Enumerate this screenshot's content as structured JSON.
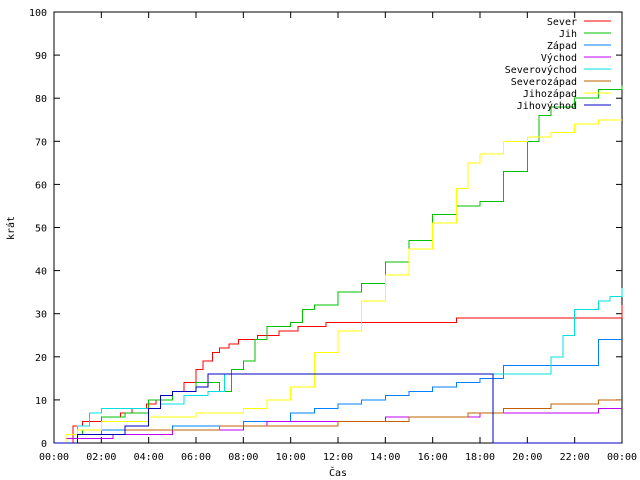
{
  "chart_data": {
    "type": "line",
    "title": "",
    "xlabel": "Čas",
    "ylabel": "krát",
    "xlim": [
      0,
      24
    ],
    "ylim": [
      0,
      100
    ],
    "x_ticks": [
      {
        "value": 0,
        "label": "00:00"
      },
      {
        "value": 2,
        "label": "02:00"
      },
      {
        "value": 4,
        "label": "04:00"
      },
      {
        "value": 6,
        "label": "06:00"
      },
      {
        "value": 8,
        "label": "08:00"
      },
      {
        "value": 10,
        "label": "10:00"
      },
      {
        "value": 12,
        "label": "12:00"
      },
      {
        "value": 14,
        "label": "14:00"
      },
      {
        "value": 16,
        "label": "16:00"
      },
      {
        "value": 18,
        "label": "18:00"
      },
      {
        "value": 20,
        "label": "20:00"
      },
      {
        "value": 22,
        "label": "22:00"
      },
      {
        "value": 24,
        "label": "00:00"
      }
    ],
    "y_ticks": [
      0,
      10,
      20,
      30,
      40,
      50,
      60,
      70,
      80,
      90,
      100
    ],
    "grid": false,
    "legend_position": "top-right",
    "series": [
      {
        "name": "Sever",
        "color": "#ff0000",
        "step": true,
        "x": [
          0,
          0.8,
          1.2,
          2.0,
          2.8,
          3.3,
          3.9,
          4.3,
          5.0,
          5.5,
          6.0,
          6.3,
          6.7,
          7.0,
          7.4,
          7.8,
          8.6,
          9.5,
          10.3,
          11.0,
          11.5,
          12.0,
          17.0,
          24.0
        ],
        "y": [
          0,
          4,
          5,
          6,
          7,
          8,
          9,
          10,
          12,
          14,
          17,
          19,
          21,
          22,
          23,
          24,
          25,
          26,
          27,
          27,
          28,
          28,
          29,
          32
        ]
      },
      {
        "name": "Jih",
        "color": "#00c000",
        "step": true,
        "x": [
          0,
          0.5,
          1.2,
          2.0,
          3.0,
          4.0,
          5.0,
          6.0,
          7.0,
          7.5,
          8.0,
          8.5,
          9.0,
          10.0,
          10.5,
          11.0,
          12.0,
          13.0,
          14.0,
          15.0,
          16.0,
          17.0,
          18.0,
          19.0,
          20.0,
          20.5,
          21.0,
          22.0,
          23.0,
          24.0
        ],
        "y": [
          0,
          2,
          3,
          6,
          7,
          10,
          12,
          14,
          12,
          17,
          19,
          24,
          27,
          28,
          31,
          32,
          35,
          37,
          42,
          47,
          53,
          55,
          56,
          63,
          70,
          76,
          78,
          80,
          82,
          83
        ]
      },
      {
        "name": "Západ",
        "color": "#0080ff",
        "step": true,
        "x": [
          0,
          0.5,
          1.0,
          2.0,
          3.0,
          5.0,
          7.0,
          8.0,
          9.0,
          10.0,
          11.0,
          12.0,
          13.0,
          14.0,
          15.0,
          16.0,
          17.0,
          18.0,
          19.0,
          21.0,
          23.0,
          24.0
        ],
        "y": [
          0,
          1,
          2,
          3,
          3,
          4,
          4,
          5,
          5,
          7,
          8,
          9,
          10,
          11,
          12,
          13,
          14,
          15,
          18,
          18,
          24,
          24
        ]
      },
      {
        "name": "Východ",
        "color": "#c000ff",
        "step": true,
        "x": [
          0,
          0.5,
          1.5,
          2.5,
          5.0,
          8.0,
          9.0,
          13.0,
          14.0,
          18.0,
          20.0,
          23.0,
          24.0
        ],
        "y": [
          0,
          1,
          1,
          2,
          3,
          4,
          5,
          5,
          6,
          7,
          7,
          8,
          8
        ]
      },
      {
        "name": "Severovýchod",
        "color": "#00e0e0",
        "step": true,
        "x": [
          0,
          1.0,
          1.5,
          2.0,
          3.5,
          4.5,
          5.5,
          6.5,
          7.2,
          7.5,
          8.0,
          20.5,
          21.0,
          21.5,
          22.0,
          23.0,
          23.5,
          24.0
        ],
        "y": [
          0,
          4,
          7,
          8,
          8,
          9,
          11,
          12,
          16,
          16,
          16,
          16,
          20,
          25,
          31,
          33,
          34,
          36
        ]
      },
      {
        "name": "Severozápad",
        "color": "#c06000",
        "step": true,
        "x": [
          0,
          1.0,
          2.0,
          3.0,
          5.0,
          7.0,
          9.0,
          12.0,
          15.0,
          17.0,
          17.5,
          19.0,
          21.0,
          23.0,
          24.0
        ],
        "y": [
          0,
          2,
          2,
          3,
          3,
          4,
          4,
          5,
          6,
          6,
          7,
          8,
          9,
          10,
          10
        ]
      },
      {
        "name": "Jihozápad",
        "color": "#ffff00",
        "step": true,
        "x": [
          0,
          0.5,
          1.0,
          2.0,
          4.0,
          6.0,
          7.5,
          8.0,
          9.0,
          10.0,
          11.0,
          12.0,
          13.0,
          14.0,
          15.0,
          16.0,
          17.0,
          17.5,
          18.0,
          19.0,
          20.0,
          21.0,
          22.0,
          23.0,
          24.0
        ],
        "y": [
          0,
          2,
          3,
          5,
          6,
          7,
          7,
          8,
          10,
          13,
          21,
          26,
          33,
          39,
          45,
          51,
          59,
          65,
          67,
          70,
          71,
          72,
          74,
          75,
          75
        ]
      },
      {
        "name": "Jihovýchod",
        "color": "#0000c0",
        "step": true,
        "x": [
          0,
          0.5,
          1.0,
          2.5,
          3.0,
          4.0,
          4.5,
          5.0,
          6.0,
          6.5,
          18.5,
          18.55,
          24.0
        ],
        "y": [
          0,
          0,
          2,
          2,
          4,
          8,
          11,
          12,
          13,
          16,
          16,
          0,
          0
        ]
      }
    ]
  }
}
